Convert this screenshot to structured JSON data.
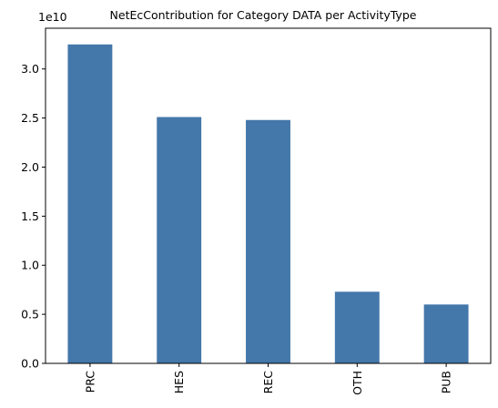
{
  "chart_data": {
    "type": "bar",
    "title": "NetEcContribution for Category DATA per ActivityType",
    "xlabel": "",
    "ylabel": "",
    "categories": [
      "PRC",
      "HES",
      "REC",
      "OTH",
      "PUB"
    ],
    "values": [
      32500000000,
      25100000000,
      24800000000,
      7300000000,
      6000000000
    ],
    "ylim": [
      0,
      34150000000
    ],
    "scale_label": "1e10",
    "y_ticks": [
      0,
      5000000000,
      10000000000,
      15000000000,
      20000000000,
      25000000000,
      30000000000
    ],
    "y_tick_labels": [
      "0.0",
      "0.5",
      "1.0",
      "1.5",
      "2.0",
      "2.5",
      "3.0"
    ],
    "bar_color": "#4477aa",
    "grid": false,
    "legend": "none"
  }
}
